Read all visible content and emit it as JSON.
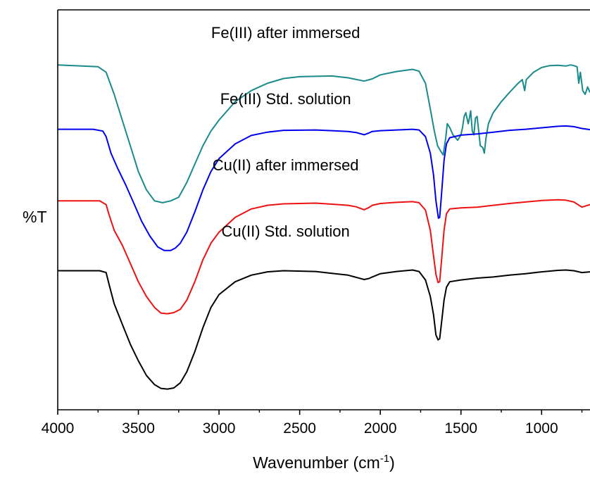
{
  "chart_data": {
    "type": "line",
    "xlabel": "Wavenumber (cm",
    "xlabel_sup": "-1",
    "xlabel_close": ")",
    "ylabel": "%T",
    "xlim": [
      4000,
      700
    ],
    "x_reversed": true,
    "x_ticks": [
      4000,
      3500,
      3000,
      2500,
      2000,
      1500,
      1000
    ],
    "x_tick_labels": [
      "4000",
      "3500",
      "3000",
      "2500",
      "2000",
      "1500",
      "1000"
    ],
    "ylim": [
      0,
      100
    ],
    "y_ticks_shown": false,
    "grid": false,
    "legend": "none",
    "series": [
      {
        "name": "Fe(III) after immersed",
        "color": "#1a8a8a",
        "points": [
          [
            4000,
            90
          ],
          [
            3750,
            89.5
          ],
          [
            3700,
            88
          ],
          [
            3650,
            82
          ],
          [
            3600,
            75
          ],
          [
            3550,
            68
          ],
          [
            3500,
            61
          ],
          [
            3450,
            56
          ],
          [
            3400,
            53
          ],
          [
            3350,
            52.5
          ],
          [
            3300,
            53
          ],
          [
            3250,
            54
          ],
          [
            3200,
            58
          ],
          [
            3150,
            63
          ],
          [
            3100,
            68
          ],
          [
            3050,
            72
          ],
          [
            3000,
            75
          ],
          [
            2900,
            80
          ],
          [
            2800,
            83
          ],
          [
            2700,
            85
          ],
          [
            2600,
            86.3
          ],
          [
            2500,
            86.8
          ],
          [
            2300,
            87
          ],
          [
            2200,
            86.5
          ],
          [
            2100,
            85.6
          ],
          [
            2050,
            86.2
          ],
          [
            2000,
            87.3
          ],
          [
            1900,
            88.2
          ],
          [
            1800,
            88.8
          ],
          [
            1760,
            88.3
          ],
          [
            1720,
            85
          ],
          [
            1690,
            78
          ],
          [
            1665,
            72
          ],
          [
            1645,
            68
          ],
          [
            1625,
            66.5
          ],
          [
            1610,
            65.5
          ],
          [
            1595,
            70
          ],
          [
            1585,
            74
          ],
          [
            1570,
            73
          ],
          [
            1550,
            71
          ],
          [
            1520,
            69.5
          ],
          [
            1500,
            71
          ],
          [
            1490,
            73
          ],
          [
            1480,
            76
          ],
          [
            1470,
            77
          ],
          [
            1455,
            74
          ],
          [
            1450,
            75
          ],
          [
            1440,
            77.5
          ],
          [
            1430,
            72
          ],
          [
            1420,
            71
          ],
          [
            1410,
            75.5
          ],
          [
            1400,
            76
          ],
          [
            1390,
            72
          ],
          [
            1380,
            68
          ],
          [
            1365,
            67.5
          ],
          [
            1355,
            66
          ],
          [
            1345,
            70
          ],
          [
            1330,
            74
          ],
          [
            1300,
            77
          ],
          [
            1250,
            80
          ],
          [
            1200,
            82.5
          ],
          [
            1150,
            84.8
          ],
          [
            1120,
            86
          ],
          [
            1105,
            83
          ],
          [
            1095,
            86
          ],
          [
            1050,
            88
          ],
          [
            1000,
            89.3
          ],
          [
            950,
            89.8
          ],
          [
            900,
            89.9
          ],
          [
            850,
            89.7
          ],
          [
            820,
            90
          ],
          [
            800,
            89.8
          ],
          [
            780,
            89.5
          ],
          [
            770,
            85
          ],
          [
            760,
            88
          ],
          [
            745,
            83
          ],
          [
            730,
            82
          ],
          [
            715,
            84
          ],
          [
            700,
            82.5
          ]
        ]
      },
      {
        "name": "Fe(III) Std. solution",
        "color": "#0000ee",
        "points": [
          [
            4000,
            72.5
          ],
          [
            3780,
            72.5
          ],
          [
            3720,
            72
          ],
          [
            3700,
            70.5
          ],
          [
            3670,
            66
          ],
          [
            3630,
            62
          ],
          [
            3580,
            57.5
          ],
          [
            3530,
            52.5
          ],
          [
            3480,
            47.5
          ],
          [
            3430,
            43.5
          ],
          [
            3380,
            40.5
          ],
          [
            3340,
            39.5
          ],
          [
            3300,
            39.5
          ],
          [
            3270,
            40.2
          ],
          [
            3240,
            41.5
          ],
          [
            3200,
            44.5
          ],
          [
            3150,
            50
          ],
          [
            3100,
            56
          ],
          [
            3050,
            61
          ],
          [
            3000,
            64.5
          ],
          [
            2900,
            68.5
          ],
          [
            2800,
            70.8
          ],
          [
            2700,
            71.7
          ],
          [
            2600,
            72.2
          ],
          [
            2400,
            72.3
          ],
          [
            2300,
            72.1
          ],
          [
            2200,
            71.9
          ],
          [
            2150,
            71.6
          ],
          [
            2100,
            71
          ],
          [
            2070,
            71.5
          ],
          [
            2050,
            71.9
          ],
          [
            2000,
            72.1
          ],
          [
            1900,
            72.3
          ],
          [
            1800,
            72.5
          ],
          [
            1760,
            72.3
          ],
          [
            1720,
            70.5
          ],
          [
            1690,
            66
          ],
          [
            1670,
            60
          ],
          [
            1655,
            53
          ],
          [
            1640,
            48.3
          ],
          [
            1632,
            48.5
          ],
          [
            1620,
            55
          ],
          [
            1605,
            64
          ],
          [
            1590,
            68.5
          ],
          [
            1570,
            70.2
          ],
          [
            1500,
            70.9
          ],
          [
            1400,
            71.2
          ],
          [
            1300,
            71.7
          ],
          [
            1200,
            72.2
          ],
          [
            1100,
            72.5
          ],
          [
            1000,
            72.9
          ],
          [
            900,
            73.3
          ],
          [
            850,
            73.4
          ],
          [
            800,
            73.2
          ],
          [
            750,
            72.7
          ],
          [
            700,
            72.4
          ]
        ]
      },
      {
        "name": "Cu(II) after immersed",
        "color": "#ee1111",
        "points": [
          [
            4000,
            53
          ],
          [
            3740,
            53
          ],
          [
            3700,
            52
          ],
          [
            3680,
            49
          ],
          [
            3650,
            45
          ],
          [
            3600,
            41
          ],
          [
            3550,
            36
          ],
          [
            3500,
            31
          ],
          [
            3450,
            27
          ],
          [
            3400,
            24
          ],
          [
            3360,
            22.5
          ],
          [
            3320,
            22.3
          ],
          [
            3280,
            22.6
          ],
          [
            3240,
            23.5
          ],
          [
            3200,
            26
          ],
          [
            3150,
            31
          ],
          [
            3100,
            37
          ],
          [
            3050,
            41.5
          ],
          [
            3000,
            44.5
          ],
          [
            2900,
            48.5
          ],
          [
            2800,
            50.8
          ],
          [
            2700,
            51.8
          ],
          [
            2600,
            52.2
          ],
          [
            2400,
            52.4
          ],
          [
            2300,
            52.1
          ],
          [
            2200,
            51.8
          ],
          [
            2150,
            51.4
          ],
          [
            2100,
            50.6
          ],
          [
            2070,
            51.2
          ],
          [
            2050,
            51.8
          ],
          [
            2000,
            52.3
          ],
          [
            1900,
            52.6
          ],
          [
            1800,
            52.8
          ],
          [
            1760,
            52.5
          ],
          [
            1720,
            50.5
          ],
          [
            1690,
            45
          ],
          [
            1670,
            38
          ],
          [
            1655,
            33
          ],
          [
            1642,
            30.8
          ],
          [
            1632,
            31
          ],
          [
            1620,
            37
          ],
          [
            1605,
            45
          ],
          [
            1590,
            49.5
          ],
          [
            1570,
            50.8
          ],
          [
            1500,
            51.1
          ],
          [
            1400,
            51.3
          ],
          [
            1300,
            51.8
          ],
          [
            1200,
            52.3
          ],
          [
            1100,
            52.7
          ],
          [
            1000,
            53.1
          ],
          [
            900,
            53.3
          ],
          [
            850,
            53.2
          ],
          [
            800,
            52.7
          ],
          [
            750,
            51.3
          ],
          [
            700,
            52
          ]
        ]
      },
      {
        "name": "Cu(II) Std. solution",
        "color": "#000000",
        "points": [
          [
            4000,
            34
          ],
          [
            3740,
            34
          ],
          [
            3700,
            33.5
          ],
          [
            3680,
            30
          ],
          [
            3650,
            25
          ],
          [
            3600,
            19.5
          ],
          [
            3550,
            14
          ],
          [
            3500,
            9.5
          ],
          [
            3450,
            5.5
          ],
          [
            3400,
            3
          ],
          [
            3360,
            2
          ],
          [
            3320,
            1.8
          ],
          [
            3280,
            2.1
          ],
          [
            3240,
            3.5
          ],
          [
            3200,
            6.5
          ],
          [
            3150,
            12
          ],
          [
            3100,
            18.5
          ],
          [
            3050,
            24
          ],
          [
            3000,
            27.5
          ],
          [
            2900,
            31
          ],
          [
            2800,
            32.8
          ],
          [
            2700,
            33.7
          ],
          [
            2600,
            34
          ],
          [
            2400,
            33.8
          ],
          [
            2300,
            33.3
          ],
          [
            2200,
            32.8
          ],
          [
            2150,
            32.2
          ],
          [
            2100,
            31.6
          ],
          [
            2070,
            31.9
          ],
          [
            2050,
            32.3
          ],
          [
            2000,
            33.2
          ],
          [
            1900,
            33.8
          ],
          [
            1800,
            34.2
          ],
          [
            1760,
            33.8
          ],
          [
            1720,
            31.5
          ],
          [
            1690,
            27
          ],
          [
            1670,
            22
          ],
          [
            1655,
            16.5
          ],
          [
            1642,
            15.2
          ],
          [
            1632,
            15.5
          ],
          [
            1620,
            20
          ],
          [
            1605,
            26
          ],
          [
            1590,
            29.5
          ],
          [
            1570,
            31
          ],
          [
            1500,
            31.5
          ],
          [
            1400,
            32
          ],
          [
            1300,
            32.3
          ],
          [
            1200,
            32.8
          ],
          [
            1100,
            33.2
          ],
          [
            1000,
            33.7
          ],
          [
            900,
            34.1
          ],
          [
            850,
            34.2
          ],
          [
            800,
            34
          ],
          [
            750,
            33.5
          ],
          [
            700,
            33.7
          ]
        ]
      }
    ],
    "annotations": [
      {
        "text": "Fe(III) after immersed",
        "anchor_x": 2500,
        "y": 97.3
      },
      {
        "text": "Fe(III) Std. solution",
        "anchor_x": 2500,
        "y": 79.3
      },
      {
        "text": "Cu(II) after immersed",
        "anchor_x": 2500,
        "y": 61.3
      },
      {
        "text": "Cu(II) Std. solution",
        "anchor_x": 2500,
        "y": 43.3
      }
    ]
  }
}
